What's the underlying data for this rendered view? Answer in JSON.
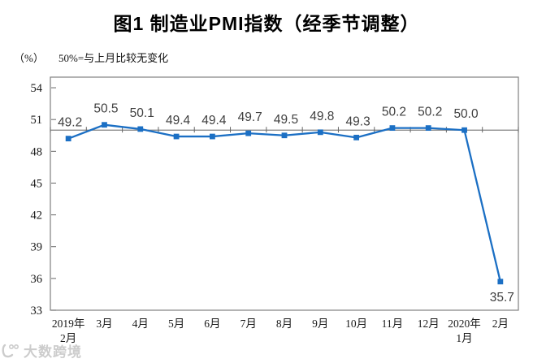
{
  "title": "图1 制造业PMI指数（经季节调整）",
  "subtitle": {
    "unit": "（%）",
    "note": "50%=与上月比较无变化"
  },
  "watermark": {
    "text": "大数跨境"
  },
  "chart_data": {
    "type": "line",
    "title": "图1 制造业PMI指数（经季节调整）",
    "unit_label": "（%）",
    "reference_note": "50%=与上月比较无变化",
    "categories": [
      "2019年2月",
      "3月",
      "4月",
      "5月",
      "6月",
      "7月",
      "8月",
      "9月",
      "10月",
      "11月",
      "12月",
      "2020年1月",
      "2月"
    ],
    "category_label_lines": [
      [
        "2019年",
        "2月"
      ],
      [
        "3月"
      ],
      [
        "4月"
      ],
      [
        "5月"
      ],
      [
        "6月"
      ],
      [
        "7月"
      ],
      [
        "8月"
      ],
      [
        "9月"
      ],
      [
        "10月"
      ],
      [
        "11月"
      ],
      [
        "12月"
      ],
      [
        "2020年",
        "1月"
      ],
      [
        "2月"
      ]
    ],
    "series": [
      {
        "name": "制造业PMI指数",
        "values": [
          49.2,
          50.5,
          50.1,
          49.4,
          49.4,
          49.7,
          49.5,
          49.8,
          49.3,
          50.2,
          50.2,
          50.0,
          35.7
        ]
      }
    ],
    "data_labels": [
      "49.2",
      "50.5",
      "50.1",
      "49.4",
      "49.4",
      "49.7",
      "49.5",
      "49.8",
      "49.3",
      "50.2",
      "50.2",
      "50.0",
      "35.7"
    ],
    "ylim": [
      33,
      55
    ],
    "yticks": [
      54,
      51,
      48,
      45,
      42,
      39,
      36,
      33
    ],
    "reference_line": 50,
    "grid": false,
    "legend": "none",
    "colors": {
      "line": "#1b6fc4",
      "marker": "#1b6fc4",
      "axis": "#808080",
      "tick": "#666666",
      "data_label": "#3f3f3f",
      "axis_label": "#1a1a1a"
    }
  }
}
